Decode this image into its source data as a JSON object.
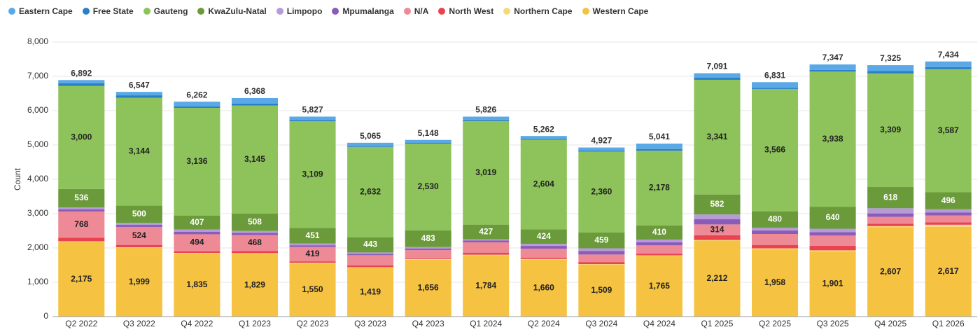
{
  "chart_data": {
    "type": "stacked_bar",
    "y_label": "Count",
    "grid": true,
    "categories": [
      "Q2 2022",
      "Q3 2022",
      "Q4 2022",
      "Q1 2023",
      "Q2 2023",
      "Q3 2023",
      "Q4 2023",
      "Q1 2024",
      "Q2 2024",
      "Q3 2024",
      "Q4 2024",
      "Q1 2025",
      "Q2 2025",
      "Q3 2025",
      "Q4 2025",
      "Q1 2026"
    ],
    "ylim": [
      0,
      8000
    ],
    "yticks": [
      0,
      {
        "value": 1000,
        "label": "1,000"
      },
      {
        "value": 2000,
        "label": "2,000"
      },
      {
        "value": 3000,
        "label": "3,000"
      },
      {
        "value": 4000,
        "label": "4,000"
      },
      {
        "value": 5000,
        "label": "5,000"
      },
      {
        "value": 6000,
        "label": "6,000"
      },
      {
        "value": 7000,
        "label": "7,000"
      },
      {
        "value": 8000,
        "label": "8,000"
      }
    ],
    "series": [
      {
        "name": "Eastern Cape",
        "color": "#5aa9e6",
        "values": [
          93,
          100,
          140,
          158,
          98,
          91,
          79,
          86,
          84,
          89,
          158,
          132,
          167,
          158,
          171,
          164
        ]
      },
      {
        "name": "Free State",
        "color": "#2a7fc9",
        "values": [
          80,
          70,
          40,
          60,
          40,
          30,
          30,
          40,
          30,
          30,
          50,
          60,
          30,
          50,
          70,
          60
        ]
      },
      {
        "name": "Gauteng",
        "color": "#8dc35a",
        "label_color": "#222",
        "values": [
          3000,
          3144,
          3136,
          3145,
          3109,
          2632,
          2530,
          3019,
          2604,
          2360,
          2178,
          3341,
          3566,
          3938,
          3309,
          3587
        ],
        "value_labels": [
          "3,000",
          "3,144",
          "3,136",
          "3,145",
          "3,109",
          "2,632",
          "2,530",
          "3,019",
          "2,604",
          "2,360",
          "2,178",
          "3,341",
          "3,566",
          "3,938",
          "3,309",
          "3,587"
        ]
      },
      {
        "name": "KwaZulu-Natal",
        "color": "#6a9a3a",
        "label_color": "#ffffff",
        "values": [
          536,
          500,
          407,
          508,
          451,
          443,
          483,
          427,
          424,
          459,
          410,
          582,
          480,
          640,
          618,
          496
        ],
        "value_labels": [
          "536",
          "500",
          "407",
          "508",
          "451",
          "443",
          "483",
          "427",
          "424",
          "459",
          "410",
          "582",
          "480",
          "640",
          "618",
          "496"
        ]
      },
      {
        "name": "Limpopo",
        "color": "#b79ad8",
        "values": [
          60,
          60,
          70,
          60,
          50,
          40,
          40,
          40,
          60,
          80,
          80,
          140,
          80,
          100,
          150,
          90
        ]
      },
      {
        "name": "Mpumalanga",
        "color": "#8a5cb8",
        "values": [
          60,
          60,
          70,
          60,
          50,
          40,
          50,
          50,
          80,
          100,
          90,
          150,
          100,
          100,
          100,
          90
        ]
      },
      {
        "name": "N/A",
        "color": "#ee8a96",
        "label_color": "#222",
        "values": [
          768,
          524,
          494,
          468,
          419,
          300,
          240,
          300,
          260,
          220,
          240,
          314,
          320,
          300,
          200,
          200
        ],
        "value_labels": [
          "768",
          "524",
          "494",
          "468",
          "419",
          null,
          null,
          null,
          null,
          null,
          null,
          "314",
          null,
          null,
          null,
          null
        ]
      },
      {
        "name": "North West",
        "color": "#e8434f",
        "values": [
          100,
          70,
          50,
          60,
          40,
          50,
          20,
          60,
          40,
          60,
          50,
          140,
          100,
          130,
          70,
          70
        ]
      },
      {
        "name": "Northern Cape",
        "color": "#f7d97a",
        "values": [
          20,
          20,
          20,
          20,
          20,
          20,
          20,
          20,
          20,
          20,
          20,
          20,
          30,
          30,
          30,
          60
        ]
      },
      {
        "name": "Western Cape",
        "color": "#f5c242",
        "label_color": "#222",
        "values": [
          2175,
          1999,
          1835,
          1829,
          1550,
          1419,
          1656,
          1784,
          1660,
          1509,
          1765,
          2212,
          1958,
          1901,
          2607,
          2617
        ],
        "value_labels": [
          "2,175",
          "1,999",
          "1,835",
          "1,829",
          "1,550",
          "1,419",
          "1,656",
          "1,784",
          "1,660",
          "1,509",
          "1,765",
          "2,212",
          "1,958",
          "1,901",
          "2,607",
          "2,617"
        ]
      }
    ],
    "totals": {
      "values": [
        6892,
        6547,
        6262,
        6368,
        5827,
        5065,
        5148,
        5826,
        5262,
        4927,
        5041,
        7091,
        6831,
        7347,
        7325,
        7434
      ],
      "value_labels": [
        "6,892",
        "6,547",
        "6,262",
        "6,368",
        "5,827",
        "5,065",
        "5,148",
        "5,826",
        "5,262",
        "4,927",
        "5,041",
        "7,091",
        "6,831",
        "7,347",
        "7,325",
        "7,434"
      ]
    }
  }
}
